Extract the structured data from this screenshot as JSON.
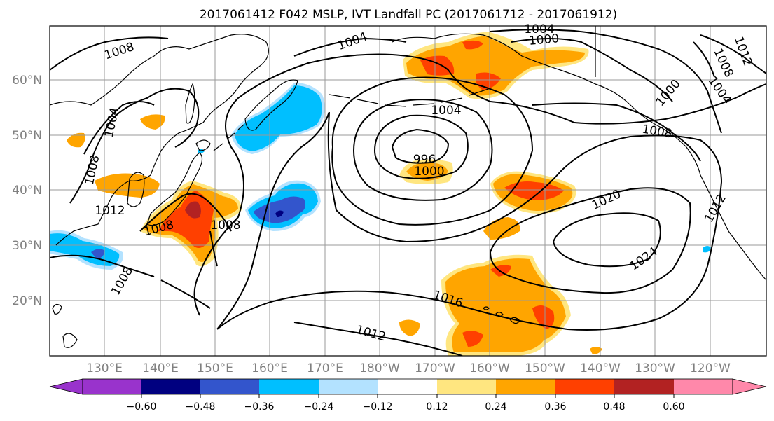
{
  "title": "2017061412 F042 MSLP, IVT Landfall PC (2017061712 - 2017061912)",
  "lat_labels": [
    "60°N",
    "50°N",
    "40°N",
    "30°N",
    "20°N"
  ],
  "lon_labels": [
    "130°E",
    "140°E",
    "150°E",
    "160°E",
    "170°E",
    "180°W",
    "170°W",
    "160°W",
    "150°W",
    "140°W",
    "130°W",
    "120°W"
  ],
  "contour_labels": [
    "1008",
    "1004",
    "1004",
    "1000",
    "1004",
    "1012",
    "1008",
    "1004",
    "1000",
    "1004",
    "1008",
    "996",
    "1000",
    "1008",
    "1012",
    "1008",
    "1008",
    "1020",
    "1024",
    "1016",
    "1012",
    "1008",
    "1012"
  ],
  "colorbar": {
    "ticks": [
      "−0.60",
      "−0.48",
      "−0.36",
      "−0.24",
      "−0.12",
      "0.12",
      "0.24",
      "0.36",
      "0.48",
      "0.60"
    ],
    "colors": [
      "#9933cc",
      "#000080",
      "#3355cc",
      "#00bfff",
      "#b3e2ff",
      "#ffffff",
      "#ffe680",
      "#ffa500",
      "#ff4000",
      "#b22222",
      "#ff88aa"
    ]
  },
  "shading_colors": {
    "yellow": "#ffe680",
    "orange": "#ffa500",
    "red": "#ff4000",
    "darkred": "#b22222",
    "lightblue": "#b3e2ff",
    "cyan": "#00bfff",
    "blue": "#3355cc",
    "navy": "#000080"
  }
}
